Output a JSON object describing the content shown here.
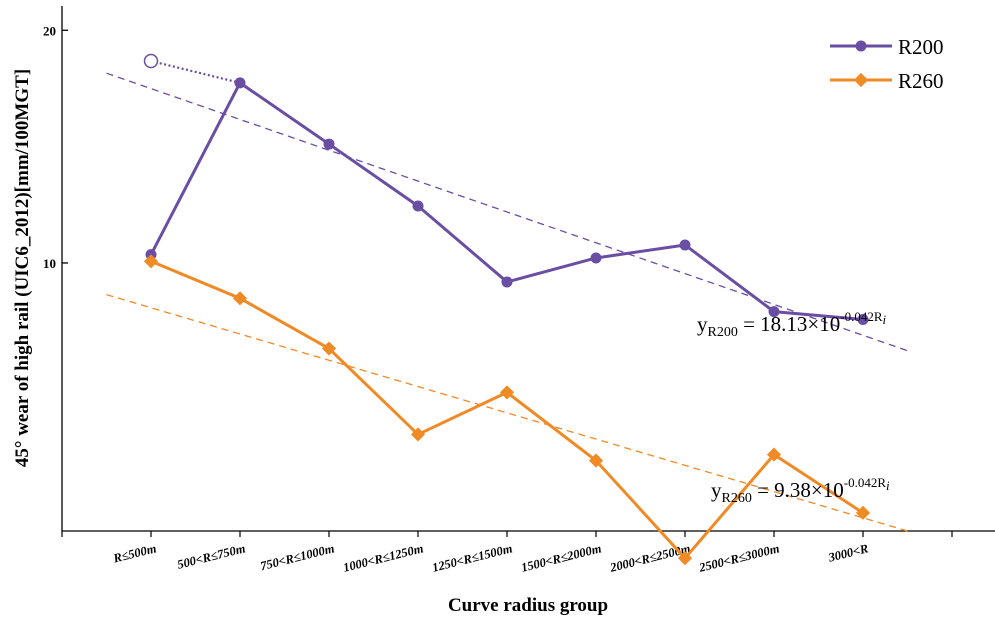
{
  "chart_data": {
    "type": "line",
    "categories": [
      "R≤500m",
      "500<R≤750m",
      "750<R≤1000m",
      "1000<R≤1250m",
      "1250<R≤1500m",
      "1500<R≤2000m",
      "2000<R≤2500m",
      "2500<R≤3000m",
      "3000<R"
    ],
    "xlabel": "Curve radius group",
    "ylabel": "45° wear of high rail (UIC6_2012)[mm/100MGT]",
    "yscale": "log",
    "ylim": [
      4.5,
      21.5
    ],
    "yticks": [
      10,
      20
    ],
    "ytick_labels": [
      "10",
      "20"
    ],
    "legend_position": "top-right",
    "grid": false,
    "series": [
      {
        "name": "R200",
        "color": "#6a4ea4",
        "marker": "circle",
        "values": [
          10.25,
          17.1,
          14.25,
          11.85,
          9.45,
          10.15,
          10.55,
          8.65,
          8.45
        ],
        "outlier": {
          "index": 0,
          "value": 18.25
        }
      },
      {
        "name": "R260",
        "color": "#f08a25",
        "marker": "diamond",
        "values": [
          10.05,
          9.0,
          7.75,
          6.0,
          6.8,
          5.55,
          4.15,
          5.65,
          4.75
        ]
      }
    ],
    "trendlines": [
      {
        "series": "R200",
        "x_range": [
          -0.5,
          8.5
        ],
        "y_range": [
          17.6,
          7.7
        ],
        "equation": {
          "lhs": "y",
          "sub": "R200",
          "mid": " = 18.13×10",
          "sup": "-0.042R",
          "sup_sub": "i"
        }
      },
      {
        "series": "R260",
        "x_range": [
          -0.5,
          8.5
        ],
        "y_range": [
          9.1,
          4.5
        ],
        "equation": {
          "lhs": "y",
          "sub": "R260",
          "mid": " = 9.38×10",
          "sup": "-0.042R",
          "sup_sub": "i"
        }
      }
    ]
  }
}
